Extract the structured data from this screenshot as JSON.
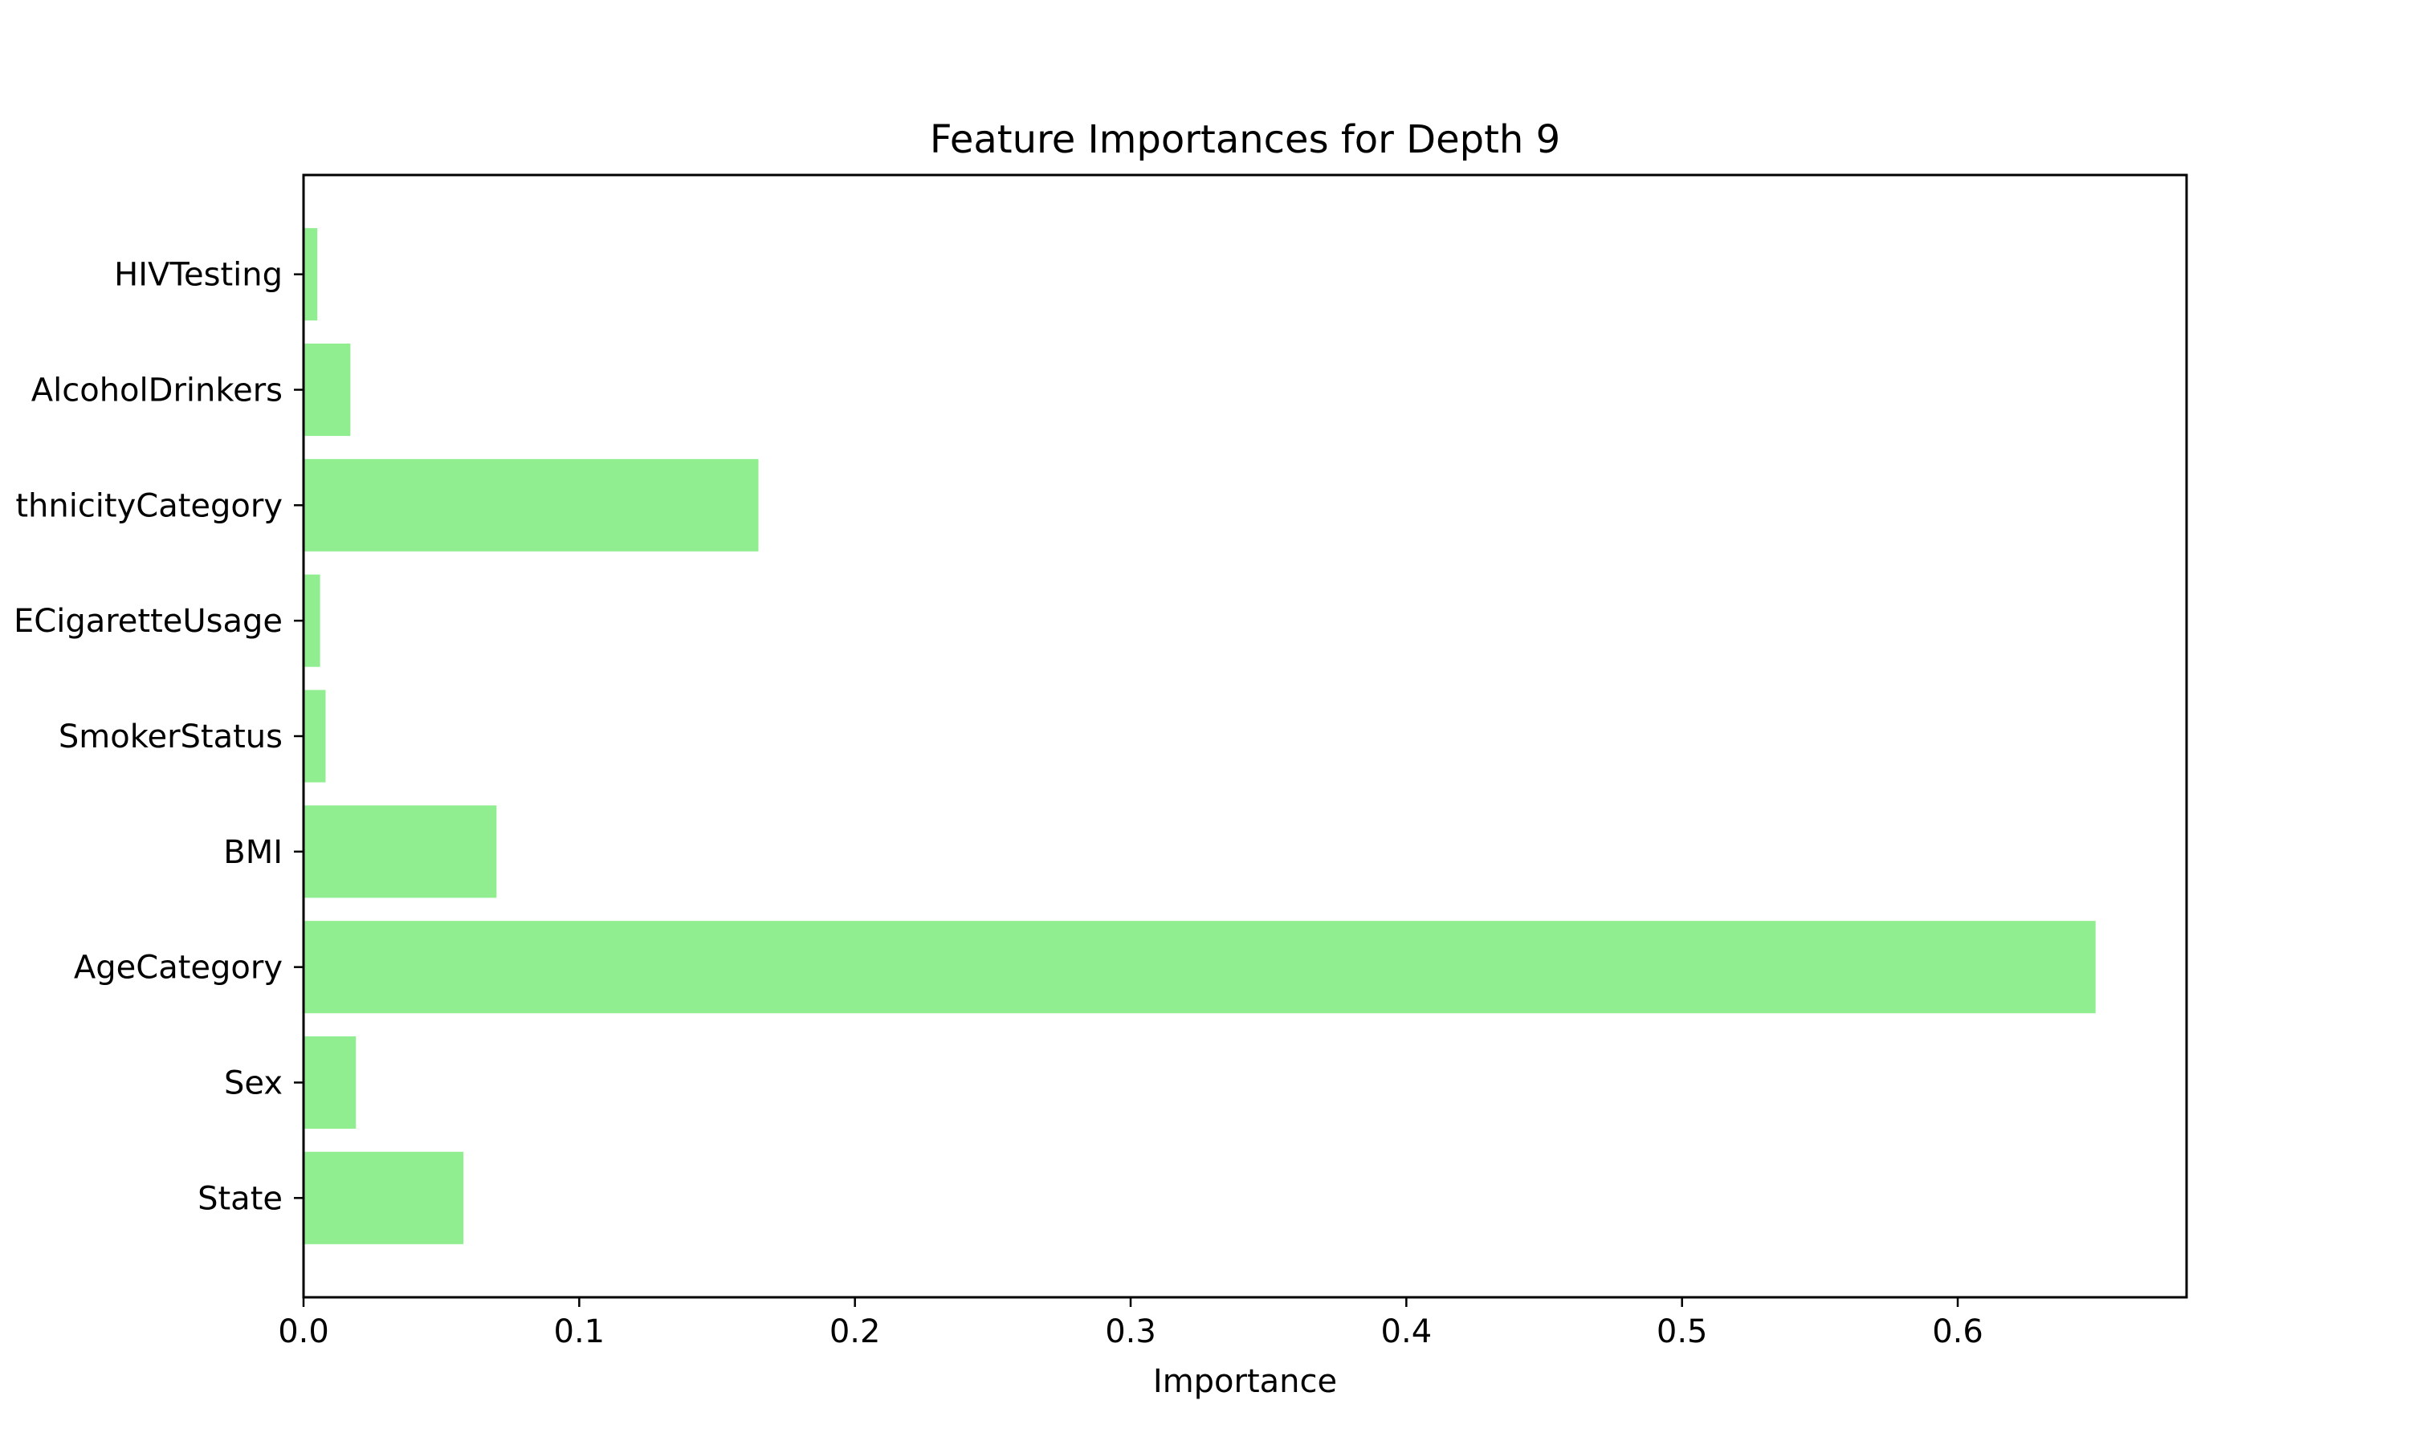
{
  "chart_data": {
    "type": "bar",
    "orientation": "horizontal",
    "title": "Feature Importances for Depth 9",
    "xlabel": "Importance",
    "ylabel": "",
    "categories": [
      "State",
      "Sex",
      "AgeCategory",
      "BMI",
      "SmokerStatus",
      "ECigaretteUsage",
      "RaceEthnicityCategory",
      "AlcoholDrinkers",
      "HIVTesting"
    ],
    "category_labels_visible": [
      "State",
      "Sex",
      "AgeCategory",
      "BMI",
      "SmokerStatus",
      "ECigaretteUsage",
      "thnicityCategory",
      "AlcoholDrinkers",
      "HIVTesting"
    ],
    "values": [
      0.058,
      0.019,
      0.65,
      0.07,
      0.008,
      0.006,
      0.165,
      0.017,
      0.005
    ],
    "xlim": [
      0,
      0.683
    ],
    "xticks": [
      0.0,
      0.1,
      0.2,
      0.3,
      0.4,
      0.5,
      0.6
    ],
    "xtick_labels": [
      "0.0",
      "0.1",
      "0.2",
      "0.3",
      "0.4",
      "0.5",
      "0.6"
    ],
    "bar_color": "#90ee90",
    "grid": false,
    "legend": "none"
  }
}
